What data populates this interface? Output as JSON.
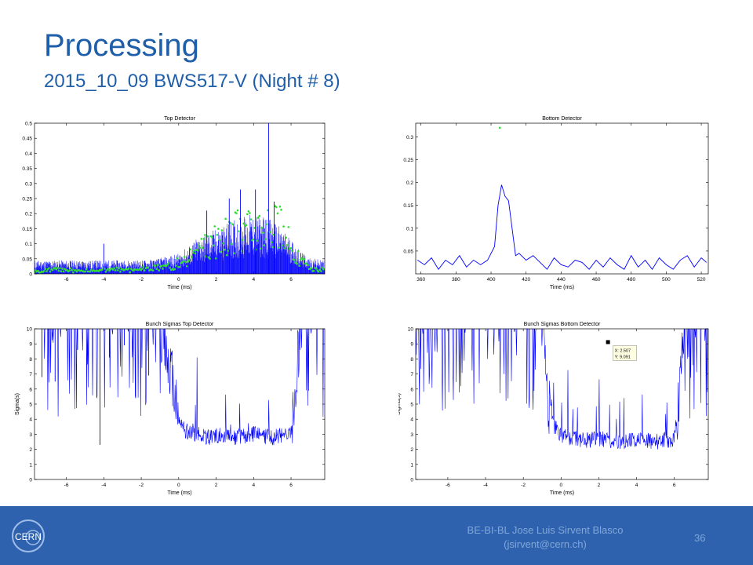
{
  "slide": {
    "title": "Processing",
    "subtitle": "2015_10_09 BWS517-V (Night # 8)"
  },
  "footer": {
    "line1": "BE-BI-BL Jose Luis Sirvent Blasco",
    "line2": "(jsirvent@cern.ch)",
    "page_number": "36",
    "logo_text": "CERN"
  },
  "colors": {
    "accent": "#1f5ea8",
    "footer": "#2f62ae",
    "signal": "#0000ff",
    "marker": "#33dd33"
  },
  "chart_data": [
    {
      "type": "line",
      "title": "Top Detector",
      "xlabel": "Time (ms)",
      "ylabel": "",
      "xlim": [
        -7.7,
        7.8
      ],
      "ylim": [
        0,
        0.5
      ],
      "xticks": [
        "-6",
        "-4",
        "-2",
        "0",
        "2",
        "4",
        "6"
      ],
      "yticks": [
        "0",
        "0.05",
        "0.1",
        "0.15",
        "0.2",
        "0.25",
        "0.3",
        "0.35",
        "0.4",
        "0.45",
        "0.5"
      ],
      "series": [
        {
          "color": "blue",
          "x": [
            -7.7,
            -6,
            -5,
            -4,
            -3,
            -2,
            -1,
            0,
            0.5,
            1,
            1.5,
            2,
            2.5,
            3,
            3.5,
            4,
            4.5,
            5,
            5.5,
            6,
            6.5,
            7,
            7.8
          ],
          "values": [
            0.03,
            0.03,
            0.03,
            0.03,
            0.03,
            0.03,
            0.035,
            0.045,
            0.06,
            0.08,
            0.09,
            0.1,
            0.11,
            0.12,
            0.13,
            0.13,
            0.13,
            0.12,
            0.1,
            0.08,
            0.05,
            0.035,
            0.03
          ]
        },
        {
          "color": "green",
          "style": "markers",
          "x": [
            -7.5,
            -6.5,
            -5.5,
            -4.5,
            -3.5,
            -2.5,
            -1.5,
            -0.5,
            0.5,
            1.2,
            1.8,
            2.4,
            3,
            3.6,
            4.2,
            4.8,
            5.4,
            6,
            6.6,
            7.2
          ],
          "values": [
            0.005,
            0.01,
            0.008,
            0.006,
            0.012,
            0.007,
            0.015,
            0.02,
            0.04,
            0.07,
            0.09,
            0.1,
            0.12,
            0.13,
            0.15,
            0.16,
            0.14,
            0.08,
            0.03,
            0.01
          ]
        }
      ],
      "spikes": {
        "x": [
          -4,
          1.5,
          2.7,
          3.3,
          4.1,
          4.8,
          5.1
        ],
        "values": [
          0.1,
          0.21,
          0.25,
          0.28,
          0.28,
          0.5,
          0.24
        ]
      }
    },
    {
      "type": "line",
      "title": "Bottom Detector",
      "xlabel": "Time (ms)",
      "ylabel": "",
      "xlim": [
        357,
        524
      ],
      "ylim": [
        0,
        0.33
      ],
      "xticks": [
        "360",
        "380",
        "400",
        "420",
        "440",
        "460",
        "480",
        "500",
        "520"
      ],
      "yticks": [
        "0.05",
        "0.1",
        "0.15",
        "0.2",
        "0.25",
        "0.3"
      ],
      "series": [
        {
          "color": "blue",
          "x": [
            358,
            362,
            366,
            370,
            374,
            378,
            382,
            386,
            390,
            394,
            398,
            402,
            404,
            406,
            408,
            410,
            412,
            414,
            416,
            420,
            424,
            428,
            432,
            436,
            440,
            444,
            448,
            452,
            456,
            460,
            464,
            468,
            472,
            476,
            480,
            484,
            488,
            492,
            496,
            500,
            504,
            508,
            512,
            516,
            520,
            523
          ],
          "values": [
            0.03,
            0.02,
            0.035,
            0.01,
            0.03,
            0.02,
            0.04,
            0.015,
            0.03,
            0.02,
            0.03,
            0.06,
            0.15,
            0.195,
            0.17,
            0.16,
            0.1,
            0.04,
            0.045,
            0.03,
            0.04,
            0.025,
            0.01,
            0.035,
            0.02,
            0.015,
            0.03,
            0.025,
            0.01,
            0.03,
            0.015,
            0.035,
            0.02,
            0.01,
            0.04,
            0.015,
            0.03,
            0.01,
            0.035,
            0.02,
            0.01,
            0.03,
            0.04,
            0.015,
            0.035,
            0.025
          ]
        }
      ],
      "markers": {
        "x": [
          405
        ],
        "values": [
          0.32
        ]
      }
    },
    {
      "type": "line",
      "title": "Bunch Sigmas Top Detector",
      "xlabel": "Time (ms)",
      "ylabel": "Sigma(s)",
      "xlim": [
        -7.7,
        7.8
      ],
      "ylim": [
        0,
        10
      ],
      "xticks": [
        "-6",
        "-4",
        "-2",
        "0",
        "2",
        "4",
        "6"
      ],
      "yticks": [
        "0",
        "1",
        "2",
        "3",
        "4",
        "5",
        "6",
        "7",
        "8",
        "9",
        "10"
      ],
      "series": [
        {
          "color": "blue",
          "x": [
            -7.7,
            -1,
            -0.8,
            -0.4,
            0,
            0.4,
            1,
            1.5,
            2,
            2.5,
            3,
            3.5,
            4,
            4.5,
            5,
            5.5,
            6,
            6.2,
            6.5,
            7.8
          ],
          "values": [
            10,
            10,
            9,
            7,
            4,
            3.2,
            3,
            2.8,
            2.9,
            3,
            2.8,
            2.9,
            3,
            2.9,
            2.8,
            2.9,
            3,
            6,
            10,
            10
          ]
        }
      ],
      "spikes": {
        "x": [
          -7.3,
          -6.6,
          -5.4,
          -4.2,
          -3.7,
          -2.9,
          -2.3,
          -1.6
        ],
        "values": [
          6.8,
          6.5,
          8.6,
          2.3,
          8.1,
          8.9,
          5.4,
          6.9
        ]
      }
    },
    {
      "type": "line",
      "title": "Bunch Sigmas Bottom Detector",
      "xlabel": "Time (ms)",
      "ylabel": "Sigma(s)",
      "xlim": [
        -7.7,
        7.8
      ],
      "ylim": [
        0,
        10
      ],
      "xticks": [
        "-6",
        "-4",
        "-2",
        "0",
        "2",
        "4",
        "6"
      ],
      "yticks": [
        "0",
        "1",
        "2",
        "3",
        "4",
        "5",
        "6",
        "7",
        "8",
        "9",
        "10"
      ],
      "series": [
        {
          "color": "blue",
          "x": [
            -0.9,
            -0.7,
            -0.4,
            0,
            0.5,
            1,
            1.5,
            2,
            2.5,
            3,
            3.5,
            4,
            4.5,
            5,
            5.5,
            6,
            6.2,
            6.5,
            7.2
          ],
          "values": [
            10,
            5,
            3.5,
            3,
            2.8,
            2.7,
            2.6,
            2.7,
            2.6,
            2.5,
            2.6,
            2.7,
            2.6,
            2.5,
            2.6,
            2.7,
            5,
            10,
            10
          ]
        }
      ],
      "datatip": {
        "x_text": "X: 2.507",
        "y_text": "Y: 9.091",
        "x": 2.507,
        "y": 9.091
      }
    }
  ]
}
